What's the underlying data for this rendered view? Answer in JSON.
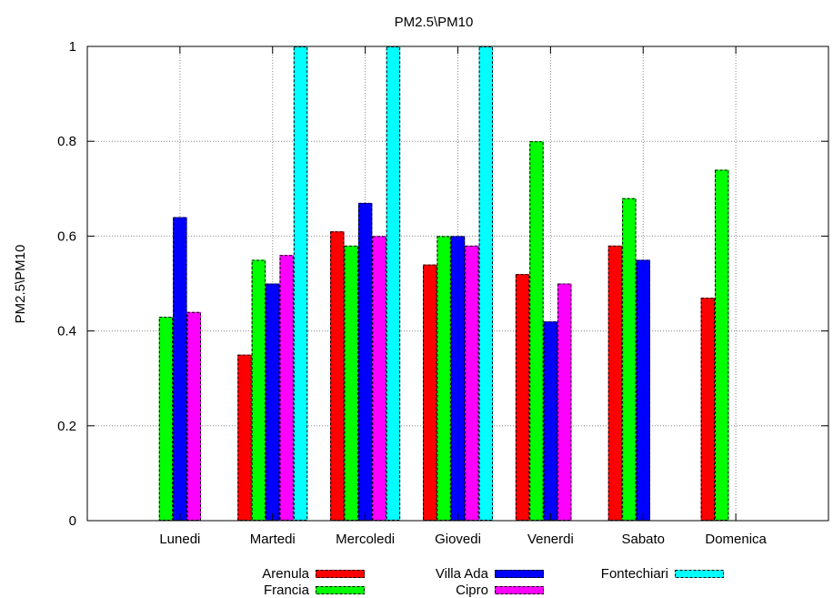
{
  "chart_data": {
    "type": "bar",
    "title": "PM2.5\\PM10",
    "xlabel": "",
    "ylabel": "PM2.5\\PM10",
    "ylim": [
      0,
      1
    ],
    "yticks": [
      "0",
      "0.2",
      "0.4",
      "0.6",
      "0.8",
      "1"
    ],
    "grid": true,
    "legend_position": "bottom",
    "categories": [
      "Lunedi",
      "Martedi",
      "Mercoledi",
      "Giovedi",
      "Venerdi",
      "Sabato",
      "Domenica"
    ],
    "series": [
      {
        "name": "Arenula",
        "color": "#ff0000",
        "values": [
          null,
          0.35,
          0.61,
          0.54,
          0.52,
          0.58,
          0.47
        ]
      },
      {
        "name": "Francia",
        "color": "#00ff00",
        "values": [
          0.43,
          0.55,
          0.58,
          0.6,
          0.8,
          0.68,
          0.74
        ]
      },
      {
        "name": "Villa Ada",
        "color": "#0000ff",
        "values": [
          0.64,
          0.5,
          0.67,
          0.6,
          0.42,
          0.55,
          null
        ]
      },
      {
        "name": "Cipro",
        "color": "#ff00ff",
        "values": [
          0.44,
          0.56,
          0.6,
          0.58,
          0.5,
          null,
          null
        ]
      },
      {
        "name": "Fontechiari",
        "color": "#00ffff",
        "values": [
          null,
          1.0,
          1.0,
          1.0,
          null,
          null,
          null
        ]
      }
    ]
  }
}
